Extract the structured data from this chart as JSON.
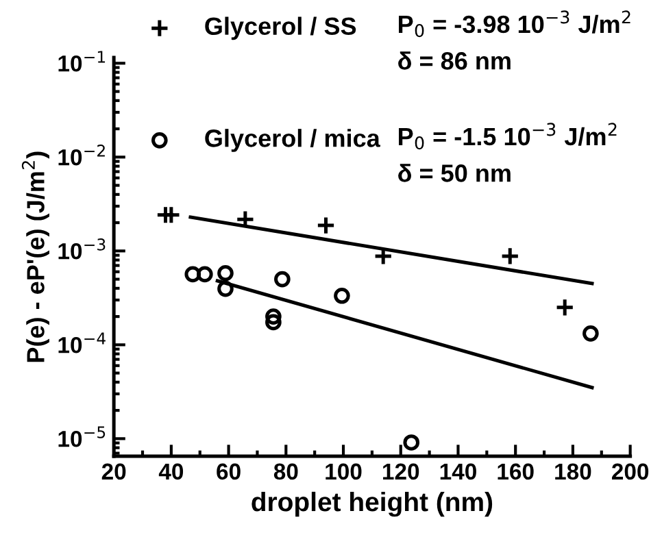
{
  "chart_data": {
    "type": "scatter",
    "xlabel": "droplet height (nm)",
    "ylabel": "P(e) - eP'(e) (J/m$^{2}$)",
    "xlim": [
      20,
      200
    ],
    "xticks": [
      20,
      40,
      60,
      80,
      100,
      120,
      140,
      160,
      180,
      200
    ],
    "ylim": [
      6.5e-06,
      0.115
    ],
    "log": "y",
    "yticks": [
      {
        "value": 1e-05,
        "label": "10$^{−5}$"
      },
      {
        "value": 0.0001,
        "label": "10$^{−4}$"
      },
      {
        "value": 0.001,
        "label": "10$^{−3}$"
      },
      {
        "value": 0.01,
        "label": "10$^{−2}$"
      },
      {
        "value": 0.1,
        "label": "10$^{−1}$"
      }
    ],
    "grid": false,
    "legend": "top",
    "annotations": [
      "P$_{0}$ = -3.98 10$^{−3}$ J/m$^{2}$",
      "δ = 86 nm",
      "P$_{0}$ = -1.5 10$^{−3}$ J/m$^{2}$",
      "δ = 50 nm"
    ],
    "series": [
      {
        "name": "Glycerol / SS",
        "marker": "cross",
        "color": "#000000",
        "x": [
          38,
          40,
          65.8,
          93.9,
          113.9,
          158.1,
          177.2
        ],
        "values": [
          0.00242,
          0.00242,
          0.00217,
          0.00187,
          0.00088,
          0.00088,
          0.00025
        ]
      },
      {
        "name": "Glycerol / mica",
        "marker": "circle",
        "color": "#000000",
        "x": [
          47.5,
          51.7,
          58.9,
          58.9,
          78.7,
          75.6,
          75.6,
          99.5,
          123.7,
          186.2
        ],
        "values": [
          0.000565,
          0.000565,
          0.00058,
          0.000395,
          0.0005,
          0.0002,
          0.000174,
          0.000333,
          9.1e-06,
          0.000132
        ]
      },
      {
        "type": "line",
        "color": "#000000",
        "x": [
          46.7,
          186.7
        ],
        "values": [
          0.00229,
          0.00045
        ]
      },
      {
        "type": "line",
        "color": "#000000",
        "x": [
          56.1,
          186.7
        ],
        "values": [
          0.00048,
          3.5e-05
        ]
      }
    ]
  }
}
